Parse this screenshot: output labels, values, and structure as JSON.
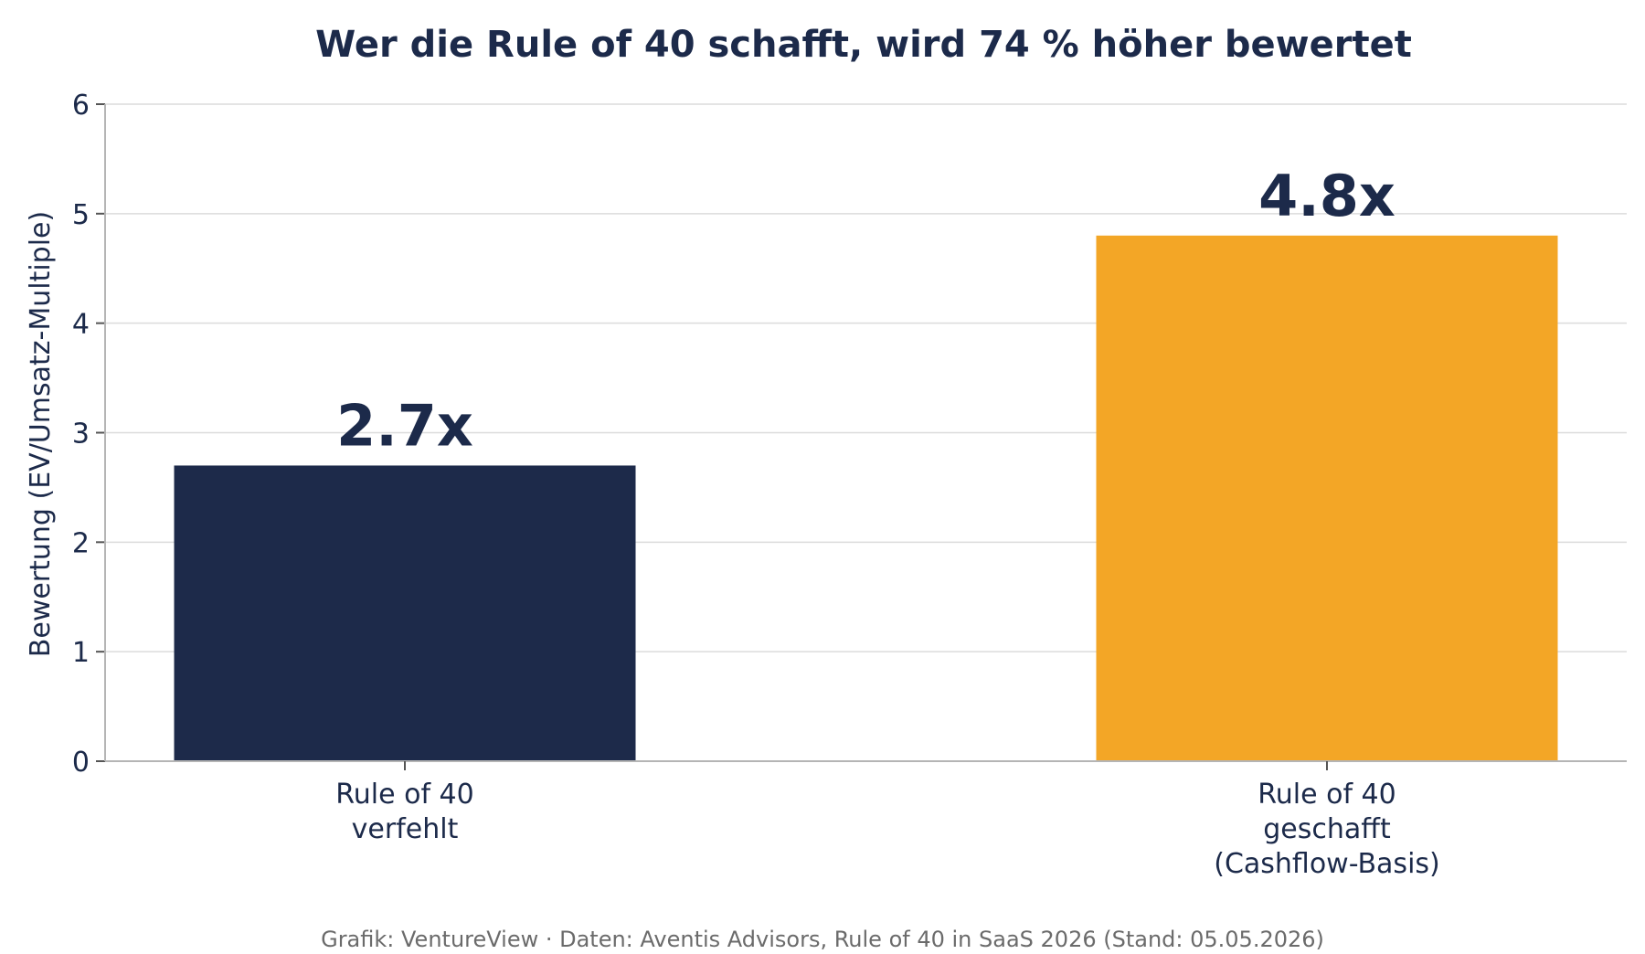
{
  "chart_data": {
    "type": "bar",
    "title": "Wer die Rule of 40 schafft, wird 74 % höher bewertet",
    "ylabel": "Bewertung (EV/Umsatz-Multiple)",
    "xlabel": "",
    "ylim": [
      0,
      6
    ],
    "yticks": [
      0,
      1,
      2,
      3,
      4,
      5,
      6
    ],
    "grid": true,
    "categories": [
      [
        "Rule of 40",
        "verfehlt"
      ],
      [
        "Rule of 40",
        "geschafft",
        "(Cashflow-Basis)"
      ]
    ],
    "values": [
      2.7,
      4.8
    ],
    "value_labels": [
      "2.7x",
      "4.8x"
    ],
    "colors": [
      "#1d2a4a",
      "#f3a626"
    ]
  },
  "footer": {
    "source": "Grafik: VentureView · Daten: Aventis Advisors, Rule of 40 in SaaS 2026 (Stand: 05.05.2026)"
  }
}
